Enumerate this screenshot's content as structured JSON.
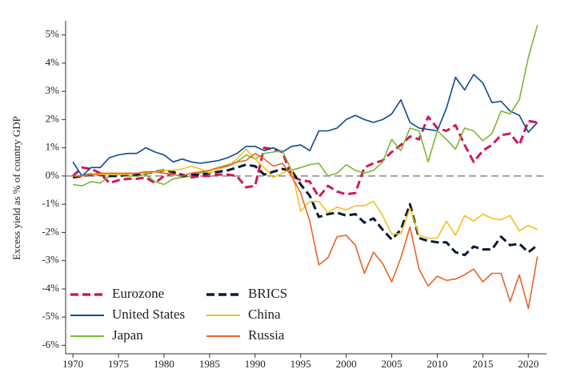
{
  "chart_data": {
    "type": "line",
    "y_label": "Excess yield as % of country GDP",
    "x": [
      1970,
      1971,
      1972,
      1973,
      1974,
      1975,
      1976,
      1977,
      1978,
      1979,
      1980,
      1981,
      1982,
      1983,
      1984,
      1985,
      1986,
      1987,
      1988,
      1989,
      1990,
      1991,
      1992,
      1993,
      1994,
      1995,
      1996,
      1997,
      1998,
      1999,
      2000,
      2001,
      2002,
      2003,
      2004,
      2005,
      2006,
      2007,
      2008,
      2009,
      2010,
      2011,
      2012,
      2013,
      2014,
      2015,
      2016,
      2017,
      2018,
      2019,
      2020,
      2021
    ],
    "xlim": [
      1969.2,
      2022
    ],
    "xticks": [
      1970,
      1975,
      1980,
      1985,
      1990,
      1995,
      2000,
      2005,
      2010,
      2015,
      2020
    ],
    "ylim": [
      -6.3,
      5.5
    ],
    "yticks": [
      {
        "value": -6,
        "label": "-6%"
      },
      {
        "value": -5,
        "label": "-5%"
      },
      {
        "value": -4,
        "label": "-4%"
      },
      {
        "value": -3,
        "label": "-3%"
      },
      {
        "value": -2,
        "label": "-2%"
      },
      {
        "value": -1,
        "label": "-1%"
      },
      {
        "value": 0,
        "label": "0%"
      },
      {
        "value": 1,
        "label": "1%"
      },
      {
        "value": 2,
        "label": "2%"
      },
      {
        "value": 3,
        "label": "3%"
      },
      {
        "value": 4,
        "label": "4%"
      },
      {
        "value": 5,
        "label": "5%"
      }
    ],
    "reference_line": 0,
    "legend": "lower left",
    "series": [
      {
        "name": "Eurozone",
        "color": "#d1185a",
        "dashed": true,
        "values": [
          0.0,
          0.3,
          0.25,
          0.1,
          -0.25,
          -0.15,
          -0.1,
          -0.1,
          -0.05,
          -0.25,
          0.0,
          0.1,
          0.05,
          -0.05,
          0.0,
          0.0,
          0.05,
          0.05,
          0.0,
          -0.4,
          -0.35,
          1.0,
          0.95,
          0.85,
          0.0,
          -0.15,
          -0.2,
          -0.75,
          -0.35,
          -0.55,
          -0.65,
          -0.6,
          0.3,
          0.45,
          0.55,
          0.85,
          1.1,
          1.4,
          1.3,
          2.1,
          1.7,
          1.6,
          1.8,
          1.1,
          0.5,
          0.9,
          1.1,
          1.45,
          1.5,
          1.1,
          1.95,
          1.9
        ]
      },
      {
        "name": "United States",
        "color": "#0b4a92",
        "dashed": false,
        "values": [
          0.5,
          0.0,
          0.3,
          0.3,
          0.65,
          0.75,
          0.8,
          0.8,
          1.0,
          0.85,
          0.75,
          0.5,
          0.6,
          0.5,
          0.45,
          0.5,
          0.55,
          0.65,
          0.8,
          1.05,
          1.05,
          0.9,
          1.0,
          0.85,
          1.05,
          1.1,
          0.9,
          1.6,
          1.6,
          1.7,
          2.0,
          2.15,
          2.0,
          1.9,
          2.0,
          2.2,
          2.7,
          1.9,
          1.7,
          1.65,
          1.6,
          2.4,
          3.5,
          3.05,
          3.6,
          3.3,
          2.6,
          2.65,
          2.3,
          2.15,
          1.55,
          1.9
        ]
      },
      {
        "name": "Japan",
        "color": "#7ab833",
        "dashed": false,
        "values": [
          -0.3,
          -0.35,
          -0.2,
          -0.25,
          0.0,
          0.05,
          0.0,
          0.0,
          0.05,
          -0.2,
          -0.3,
          -0.1,
          -0.05,
          0.0,
          0.1,
          0.2,
          0.3,
          0.4,
          0.5,
          0.75,
          0.6,
          0.8,
          0.85,
          0.9,
          0.2,
          0.3,
          0.4,
          0.45,
          0.0,
          0.1,
          0.4,
          0.2,
          0.1,
          0.2,
          0.5,
          1.3,
          0.9,
          1.7,
          1.6,
          0.5,
          1.6,
          1.3,
          0.95,
          1.7,
          1.6,
          1.25,
          1.5,
          2.3,
          2.2,
          2.7,
          4.2,
          5.35
        ]
      },
      {
        "name": "BRICS",
        "color": "#0a1a33",
        "dashed": true,
        "values": [
          -0.05,
          0.0,
          0.05,
          0.05,
          0.0,
          0.0,
          0.05,
          0.05,
          0.1,
          0.15,
          0.2,
          0.15,
          0.0,
          0.05,
          0.05,
          0.1,
          0.15,
          0.2,
          0.3,
          0.4,
          0.35,
          0.05,
          0.15,
          0.25,
          0.2,
          -0.3,
          -0.7,
          -1.45,
          -1.35,
          -1.3,
          -1.4,
          -1.35,
          -1.65,
          -1.5,
          -1.9,
          -2.25,
          -1.9,
          -1.0,
          -2.2,
          -2.3,
          -2.35,
          -2.35,
          -2.7,
          -2.8,
          -2.5,
          -2.6,
          -2.6,
          -2.15,
          -2.45,
          -2.4,
          -2.7,
          -2.45
        ]
      },
      {
        "name": "China",
        "color": "#f2c11a",
        "dashed": false,
        "values": [
          0.0,
          0.0,
          0.05,
          0.05,
          0.05,
          0.05,
          0.05,
          0.1,
          0.1,
          0.15,
          0.2,
          0.2,
          0.25,
          0.35,
          0.25,
          0.1,
          0.25,
          0.35,
          0.6,
          0.95,
          0.6,
          0.3,
          -0.05,
          0.1,
          0.25,
          -1.25,
          -0.9,
          -0.9,
          -1.3,
          -1.1,
          -1.2,
          -1.05,
          -1.05,
          -0.9,
          -1.4,
          -2.05,
          -2.05,
          -1.15,
          -2.1,
          -2.2,
          -2.2,
          -1.6,
          -2.1,
          -1.4,
          -1.6,
          -1.35,
          -1.5,
          -1.55,
          -1.4,
          -1.95,
          -1.75,
          -1.9
        ]
      },
      {
        "name": "Russia",
        "color": "#e8632a",
        "dashed": false,
        "values": [
          0.0,
          0.0,
          0.05,
          0.1,
          0.1,
          0.1,
          0.1,
          0.1,
          0.15,
          0.15,
          0.1,
          0.05,
          0.0,
          0.1,
          0.15,
          0.2,
          0.3,
          0.35,
          0.5,
          0.55,
          0.8,
          0.6,
          0.35,
          0.45,
          0.0,
          -0.6,
          -1.6,
          -3.15,
          -2.9,
          -2.15,
          -2.1,
          -2.45,
          -3.45,
          -2.7,
          -3.1,
          -3.75,
          -2.9,
          -1.8,
          -3.3,
          -3.9,
          -3.55,
          -3.7,
          -3.65,
          -3.5,
          -3.3,
          -3.75,
          -3.45,
          -3.45,
          -4.45,
          -3.5,
          -4.7,
          -2.85
        ]
      }
    ]
  }
}
